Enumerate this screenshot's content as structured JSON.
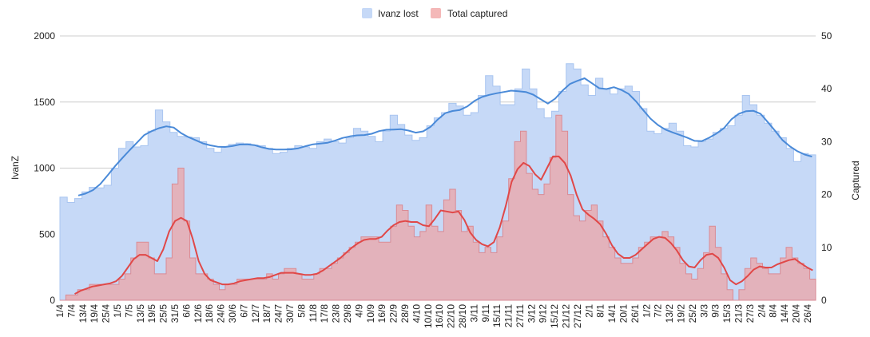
{
  "chart_data": {
    "type": "area",
    "ylabel": "IvanZ",
    "y2label": "Captured",
    "ylim": [
      0,
      2000
    ],
    "y2lim": [
      0,
      50
    ],
    "yticks": [
      0,
      500,
      1000,
      1500,
      2000
    ],
    "y2ticks": [
      0,
      10,
      20,
      30,
      40,
      50
    ],
    "grid": true,
    "legend_position": "top-center",
    "x_tick_labels": [
      "1/4",
      "7/4",
      "13/4",
      "19/4",
      "25/4",
      "1/5",
      "7/5",
      "13/5",
      "19/5",
      "25/5",
      "31/5",
      "6/6",
      "12/6",
      "18/6",
      "24/6",
      "30/6",
      "6/7",
      "12/7",
      "18/7",
      "24/7",
      "30/7",
      "5/8",
      "11/8",
      "17/8",
      "23/8",
      "29/8",
      "4/9",
      "10/9",
      "16/9",
      "22/9",
      "28/9",
      "4/10",
      "10/10",
      "16/10",
      "22/10",
      "28/10",
      "3/11",
      "9/11",
      "15/11",
      "21/11",
      "27/11",
      "3/12",
      "9/12",
      "15/12",
      "21/12",
      "27/12",
      "2/1",
      "8/1",
      "14/1",
      "20/1",
      "26/1",
      "1/2",
      "7/2",
      "13/2",
      "19/2",
      "25/2",
      "3/3",
      "9/3",
      "15/3",
      "21/3",
      "27/3",
      "2/4",
      "8/4",
      "14/4",
      "20/4",
      "26/4"
    ],
    "series": [
      {
        "name": "Ivanz lost",
        "axis": "left",
        "color": "#c6d9f7",
        "trend_color": "#4a8ad8",
        "values": [
          780,
          740,
          770,
          820,
          855,
          850,
          870,
          1000,
          1150,
          1200,
          1160,
          1170,
          1280,
          1440,
          1350,
          1270,
          1240,
          1235,
          1230,
          1200,
          1150,
          1120,
          1160,
          1180,
          1190,
          1185,
          1175,
          1170,
          1150,
          1110,
          1120,
          1150,
          1170,
          1160,
          1150,
          1200,
          1220,
          1200,
          1190,
          1230,
          1300,
          1280,
          1240,
          1200,
          1280,
          1400,
          1330,
          1250,
          1210,
          1230,
          1320,
          1380,
          1420,
          1490,
          1470,
          1400,
          1420,
          1550,
          1700,
          1620,
          1480,
          1480,
          1600,
          1750,
          1600,
          1450,
          1380,
          1430,
          1580,
          1790,
          1750,
          1630,
          1550,
          1680,
          1600,
          1560,
          1600,
          1620,
          1580,
          1450,
          1280,
          1260,
          1300,
          1340,
          1280,
          1170,
          1160,
          1200,
          1220,
          1270,
          1300,
          1320,
          1400,
          1550,
          1480,
          1400,
          1340,
          1280,
          1230,
          1150,
          1050,
          1110,
          1100
        ]
      },
      {
        "name": "Total captured",
        "axis": "right",
        "color": "#e8aab0",
        "trend_color": "#e04848",
        "values": [
          0,
          1,
          1,
          2,
          2,
          3,
          3,
          3,
          3,
          3,
          4,
          5,
          8,
          11,
          11,
          8,
          5,
          5,
          8,
          22,
          25,
          15,
          8,
          5,
          5,
          4,
          3,
          2,
          3,
          3,
          4,
          4,
          4,
          4,
          4,
          5,
          4,
          5,
          6,
          6,
          5,
          4,
          4,
          5,
          6,
          6,
          7,
          8,
          9,
          10,
          11,
          12,
          12,
          12,
          11,
          11,
          14,
          18,
          17,
          14,
          12,
          13,
          18,
          14,
          13,
          19,
          21,
          17,
          13,
          14,
          11,
          9,
          10,
          9,
          12,
          15,
          23,
          30,
          32,
          24,
          21,
          20,
          22,
          27,
          35,
          32,
          20,
          16,
          15,
          17,
          18,
          15,
          12,
          10,
          8,
          7,
          7,
          8,
          10,
          11,
          12,
          12,
          13,
          12,
          10,
          7,
          5,
          4,
          6,
          9,
          14,
          10,
          5,
          2,
          0,
          2,
          6,
          8,
          7,
          6,
          5,
          5,
          8,
          10,
          8,
          7,
          6,
          4
        ]
      }
    ]
  }
}
